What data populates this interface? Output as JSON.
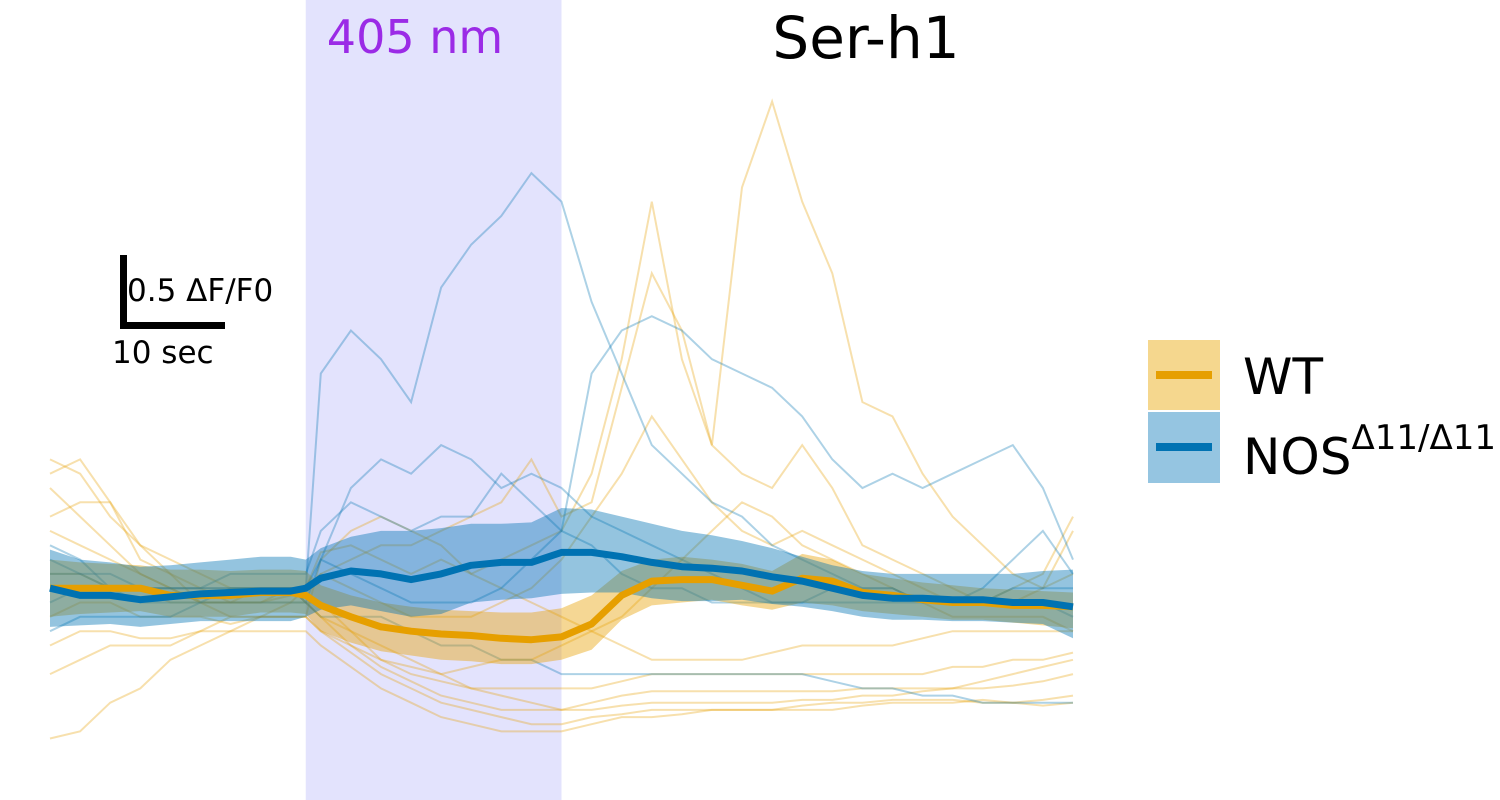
{
  "chart_data": {
    "type": "line",
    "title": "Ser-h1",
    "stim_label": "405 nm",
    "stim_color": "#9b2be6",
    "stim_fill": "#e3e3fd",
    "stim_window": [
      0,
      17
    ],
    "scalebar": {
      "y_label": "0.5 ΔF/F0",
      "y_value": 0.5,
      "x_label": "10 sec",
      "x_value": 10
    },
    "xlim": [
      -17,
      51
    ],
    "ylim": [
      -1.2,
      3.55
    ],
    "legend": {
      "placement": "right",
      "entries": [
        {
          "label": "WT",
          "color": "#e69f00",
          "band_color": "#f5d78e"
        },
        {
          "label": "NOS",
          "superscript": "Δ11/Δ11",
          "color": "#0072b2",
          "band_color": "#95c5e1"
        }
      ]
    },
    "x": [
      -17,
      -15,
      -13,
      -11,
      -9,
      -7,
      -5,
      -3,
      -1,
      0,
      1,
      3,
      5,
      7,
      9,
      11,
      13,
      15,
      17,
      19,
      21,
      23,
      25,
      27,
      29,
      31,
      33,
      35,
      37,
      39,
      41,
      43,
      45,
      47,
      49,
      51
    ],
    "series": [
      {
        "name": "WT",
        "mean": [
          0,
          0,
          0,
          0,
          -0.05,
          -0.05,
          -0.05,
          -0.03,
          -0.03,
          -0.05,
          -0.12,
          -0.2,
          -0.27,
          -0.3,
          -0.32,
          -0.33,
          -0.35,
          -0.36,
          -0.34,
          -0.25,
          -0.05,
          0.05,
          0.06,
          0.06,
          0.02,
          -0.02,
          0.07,
          0.05,
          -0.03,
          -0.05,
          -0.08,
          -0.1,
          -0.1,
          -0.12,
          -0.12,
          -0.13
        ],
        "sem_upper": [
          0.2,
          0.18,
          0.17,
          0.16,
          0.13,
          0.13,
          0.12,
          0.13,
          0.13,
          0.12,
          0.02,
          -0.05,
          -0.1,
          -0.13,
          -0.15,
          -0.16,
          -0.17,
          -0.17,
          -0.14,
          -0.05,
          0.12,
          0.2,
          0.22,
          0.2,
          0.17,
          0.12,
          0.24,
          0.2,
          0.1,
          0.07,
          0.04,
          0.02,
          0.0,
          -0.01,
          -0.02,
          -0.03
        ],
        "sem_lower": [
          -0.2,
          -0.18,
          -0.17,
          -0.16,
          -0.2,
          -0.2,
          -0.2,
          -0.17,
          -0.17,
          -0.18,
          -0.3,
          -0.38,
          -0.44,
          -0.47,
          -0.5,
          -0.51,
          -0.53,
          -0.53,
          -0.5,
          -0.43,
          -0.22,
          -0.12,
          -0.1,
          -0.08,
          -0.12,
          -0.15,
          -0.1,
          -0.12,
          -0.16,
          -0.18,
          -0.2,
          -0.22,
          -0.22,
          -0.24,
          -0.26,
          -0.28
        ],
        "traces": [
          [
            0.9,
            0.8,
            0.5,
            0.3,
            0.1,
            0.0,
            -0.1,
            -0.1,
            -0.05,
            0.0,
            0.25,
            0.3,
            0.2,
            0.1,
            0.2,
            0.1,
            0.2,
            0.3,
            0.4,
            0.8,
            1.6,
            2.7,
            1.6,
            1.0,
            2.8,
            3.4,
            2.7,
            2.2,
            1.3,
            1.2,
            0.8,
            0.5,
            0.3,
            0.1,
            0.0,
            0.1
          ],
          [
            0.8,
            0.9,
            0.6,
            0.2,
            0.1,
            -0.1,
            -0.2,
            -0.2,
            -0.1,
            0.0,
            0.1,
            0.2,
            0.3,
            0.3,
            0.4,
            0.5,
            0.6,
            0.9,
            0.5,
            0.6,
            1.4,
            2.2,
            1.8,
            1.0,
            0.8,
            0.7,
            1.0,
            0.7,
            0.3,
            0.2,
            0.1,
            0.0,
            -0.1,
            0.0,
            0.1,
            0.5
          ],
          [
            0.7,
            0.5,
            0.3,
            0.1,
            0.0,
            -0.1,
            -0.1,
            0.0,
            0.0,
            0.0,
            0.1,
            0.0,
            -0.1,
            -0.2,
            -0.2,
            -0.2,
            -0.1,
            0.0,
            0.2,
            0.5,
            0.8,
            1.2,
            0.9,
            0.6,
            0.4,
            0.3,
            0.4,
            0.3,
            0.2,
            0.1,
            0.0,
            -0.1,
            -0.1,
            -0.1,
            0.0,
            0.4
          ],
          [
            0.5,
            0.6,
            0.6,
            0.3,
            0.2,
            0.1,
            0.0,
            0.0,
            0.0,
            -0.1,
            -0.1,
            -0.3,
            -0.5,
            -0.6,
            -0.65,
            -0.7,
            -0.7,
            -0.7,
            -0.7,
            -0.7,
            -0.65,
            -0.6,
            -0.6,
            -0.6,
            -0.6,
            -0.6,
            -0.6,
            -0.6,
            -0.6,
            -0.6,
            -0.6,
            -0.55,
            -0.55,
            -0.5,
            -0.5,
            -0.45
          ],
          [
            0.4,
            0.3,
            0.2,
            0.1,
            0.0,
            -0.1,
            -0.1,
            -0.1,
            0.0,
            -0.1,
            -0.2,
            -0.4,
            -0.55,
            -0.65,
            -0.75,
            -0.8,
            -0.85,
            -0.85,
            -0.85,
            -0.8,
            -0.75,
            -0.72,
            -0.72,
            -0.72,
            -0.72,
            -0.72,
            -0.72,
            -0.72,
            -0.7,
            -0.7,
            -0.7,
            -0.7,
            -0.65,
            -0.6,
            -0.55,
            -0.5
          ],
          [
            0.1,
            0.1,
            0.0,
            0.0,
            -0.1,
            -0.1,
            -0.1,
            -0.1,
            -0.1,
            -0.1,
            -0.2,
            -0.3,
            -0.4,
            -0.5,
            -0.6,
            -0.7,
            -0.75,
            -0.8,
            -0.85,
            -0.85,
            -0.82,
            -0.8,
            -0.8,
            -0.8,
            -0.8,
            -0.8,
            -0.78,
            -0.78,
            -0.75,
            -0.75,
            -0.72,
            -0.7,
            -0.7,
            -0.68,
            -0.65,
            -0.6
          ],
          [
            -0.2,
            -0.1,
            -0.1,
            -0.2,
            -0.2,
            -0.2,
            -0.25,
            -0.2,
            -0.2,
            -0.2,
            -0.3,
            -0.45,
            -0.6,
            -0.7,
            -0.8,
            -0.85,
            -0.9,
            -0.95,
            -0.95,
            -0.9,
            -0.88,
            -0.85,
            -0.85,
            -0.85,
            -0.85,
            -0.85,
            -0.82,
            -0.8,
            -0.8,
            -0.78,
            -0.78,
            -0.78,
            -0.8,
            -0.8,
            -0.78,
            -0.75
          ],
          [
            -0.4,
            -0.3,
            -0.3,
            -0.35,
            -0.35,
            -0.3,
            -0.3,
            -0.3,
            -0.3,
            -0.3,
            -0.4,
            -0.55,
            -0.7,
            -0.8,
            -0.9,
            -0.95,
            -1.0,
            -1.0,
            -1.0,
            -0.95,
            -0.9,
            -0.9,
            -0.88,
            -0.85,
            -0.85,
            -0.85,
            -0.85,
            -0.85,
            -0.82,
            -0.8,
            -0.8,
            -0.8,
            -0.78,
            -0.8,
            -0.82,
            -0.8
          ],
          [
            -1.05,
            -1.0,
            -0.8,
            -0.7,
            -0.5,
            -0.4,
            -0.3,
            -0.2,
            -0.2,
            -0.2,
            0.2,
            0.4,
            0.5,
            0.4,
            0.3,
            0.1,
            0.0,
            -0.1,
            -0.2,
            -0.3,
            -0.4,
            -0.5,
            -0.5,
            -0.5,
            -0.5,
            -0.45,
            -0.4,
            -0.4,
            -0.4,
            -0.4,
            -0.35,
            -0.3,
            -0.3,
            -0.3,
            -0.3,
            -0.3
          ],
          [
            -0.6,
            -0.5,
            -0.4,
            -0.4,
            -0.4,
            -0.3,
            -0.2,
            -0.2,
            -0.2,
            -0.2,
            -0.3,
            -0.4,
            -0.5,
            -0.55,
            -0.6,
            -0.55,
            -0.5,
            -0.5,
            -0.4,
            -0.3,
            -0.2,
            0.0,
            0.2,
            0.4,
            0.6,
            0.5,
            0.3,
            0.2,
            0.1,
            0.0,
            -0.1,
            -0.2,
            -0.2,
            -0.2,
            -0.2,
            -0.3
          ]
        ]
      },
      {
        "name": "NOS",
        "mean": [
          0.0,
          -0.05,
          -0.05,
          -0.08,
          -0.06,
          -0.04,
          -0.03,
          -0.02,
          -0.02,
          0.0,
          0.07,
          0.12,
          0.1,
          0.06,
          0.1,
          0.16,
          0.18,
          0.18,
          0.25,
          0.25,
          0.22,
          0.18,
          0.15,
          0.14,
          0.12,
          0.08,
          0.05,
          0.0,
          -0.05,
          -0.07,
          -0.07,
          -0.08,
          -0.08,
          -0.1,
          -0.1,
          -0.13
        ],
        "sem_upper": [
          0.27,
          0.2,
          0.18,
          0.15,
          0.16,
          0.18,
          0.2,
          0.22,
          0.22,
          0.2,
          0.28,
          0.36,
          0.4,
          0.4,
          0.42,
          0.45,
          0.45,
          0.46,
          0.56,
          0.55,
          0.5,
          0.45,
          0.4,
          0.37,
          0.33,
          0.28,
          0.22,
          0.16,
          0.12,
          0.1,
          0.1,
          0.1,
          0.1,
          0.1,
          0.12,
          0.13
        ],
        "sem_lower": [
          -0.27,
          -0.26,
          -0.25,
          -0.27,
          -0.25,
          -0.23,
          -0.23,
          -0.23,
          -0.23,
          -0.2,
          -0.15,
          -0.12,
          -0.16,
          -0.2,
          -0.18,
          -0.1,
          -0.08,
          -0.07,
          -0.04,
          -0.03,
          -0.03,
          -0.07,
          -0.09,
          -0.09,
          -0.08,
          -0.11,
          -0.13,
          -0.16,
          -0.2,
          -0.22,
          -0.22,
          -0.23,
          -0.23,
          -0.24,
          -0.25,
          -0.35
        ],
        "traces": [
          [
            0.3,
            0.2,
            0.0,
            -0.1,
            -0.1,
            -0.1,
            0.0,
            0.0,
            0.0,
            0.0,
            1.5,
            1.8,
            1.6,
            1.3,
            2.1,
            2.4,
            2.6,
            2.9,
            2.7,
            2.0,
            1.5,
            1.0,
            0.8,
            0.6,
            0.5,
            0.3,
            0.2,
            0.1,
            0.0,
            0.0,
            -0.1,
            -0.1,
            -0.1,
            -0.1,
            -0.1,
            -0.2
          ],
          [
            0.2,
            0.1,
            0.1,
            0.0,
            0.0,
            0.0,
            0.1,
            0.1,
            0.1,
            0.1,
            0.4,
            0.6,
            0.5,
            0.4,
            0.5,
            0.5,
            0.8,
            0.6,
            0.4,
            0.3,
            0.1,
            0.0,
            0.0,
            -0.1,
            -0.1,
            -0.1,
            -0.1,
            0.0,
            0.0,
            0.0,
            -0.1,
            -0.1,
            -0.1,
            0.0,
            0.0,
            0.0
          ],
          [
            -0.1,
            0.0,
            0.0,
            0.0,
            0.0,
            0.0,
            0.0,
            0.0,
            0.0,
            -0.1,
            0.2,
            0.7,
            0.9,
            0.8,
            1.0,
            0.9,
            0.7,
            0.8,
            0.7,
            0.5,
            0.4,
            0.3,
            0.2,
            0.1,
            0.0,
            -0.1,
            -0.1,
            -0.1,
            -0.1,
            -0.1,
            -0.1,
            -0.1,
            0.0,
            0.2,
            0.4,
            0.1
          ],
          [
            0.1,
            0.1,
            0.0,
            0.0,
            0.0,
            0.0,
            0.0,
            0.0,
            0.0,
            0.0,
            0.2,
            0.1,
            0.0,
            -0.1,
            -0.1,
            -0.1,
            0.0,
            0.2,
            0.4,
            1.5,
            1.8,
            1.9,
            1.8,
            1.6,
            1.5,
            1.4,
            1.2,
            0.9,
            0.7,
            0.8,
            0.7,
            0.8,
            0.9,
            1.0,
            0.7,
            0.2
          ],
          [
            -0.3,
            -0.2,
            -0.2,
            -0.2,
            -0.2,
            -0.1,
            -0.1,
            -0.1,
            -0.1,
            -0.1,
            -0.2,
            -0.2,
            -0.2,
            -0.3,
            -0.4,
            -0.4,
            -0.5,
            -0.5,
            -0.6,
            -0.6,
            -0.6,
            -0.6,
            -0.6,
            -0.6,
            -0.6,
            -0.6,
            -0.6,
            -0.65,
            -0.7,
            -0.7,
            -0.75,
            -0.75,
            -0.8,
            -0.8,
            -0.8,
            -0.8
          ]
        ]
      }
    ]
  }
}
